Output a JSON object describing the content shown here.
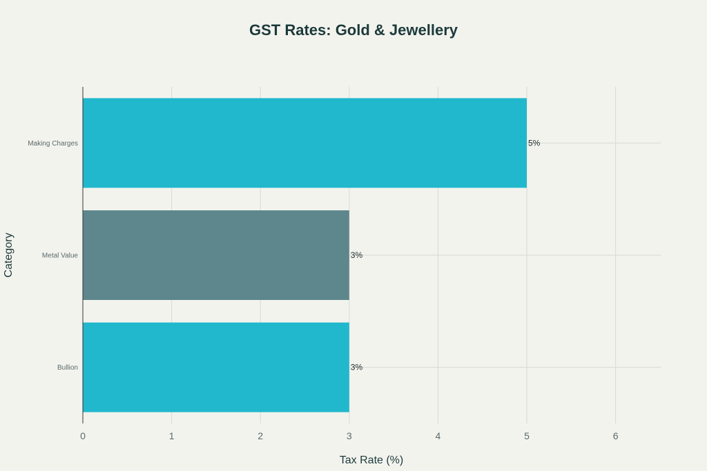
{
  "chart_data": {
    "type": "bar",
    "orientation": "horizontal",
    "title": "GST Rates: Gold & Jewellery",
    "xlabel": "Tax Rate (%)",
    "ylabel": "Category",
    "categories": [
      "Bullion",
      "Metal Value",
      "Making Charges"
    ],
    "values": [
      3,
      3,
      5
    ],
    "value_labels": [
      "3%",
      "3%",
      "5%"
    ],
    "bar_colors": [
      "#21b8cd",
      "#5e878d",
      "#21b8cd"
    ],
    "x_ticks": [
      "0",
      "1",
      "2",
      "3",
      "4",
      "5",
      "6"
    ],
    "xlim": [
      0,
      6.5
    ],
    "grid": true,
    "legend": "none"
  },
  "colors": {
    "background": "#f3f3ee",
    "grid": "#d9d9d3",
    "axis": "#333333"
  }
}
